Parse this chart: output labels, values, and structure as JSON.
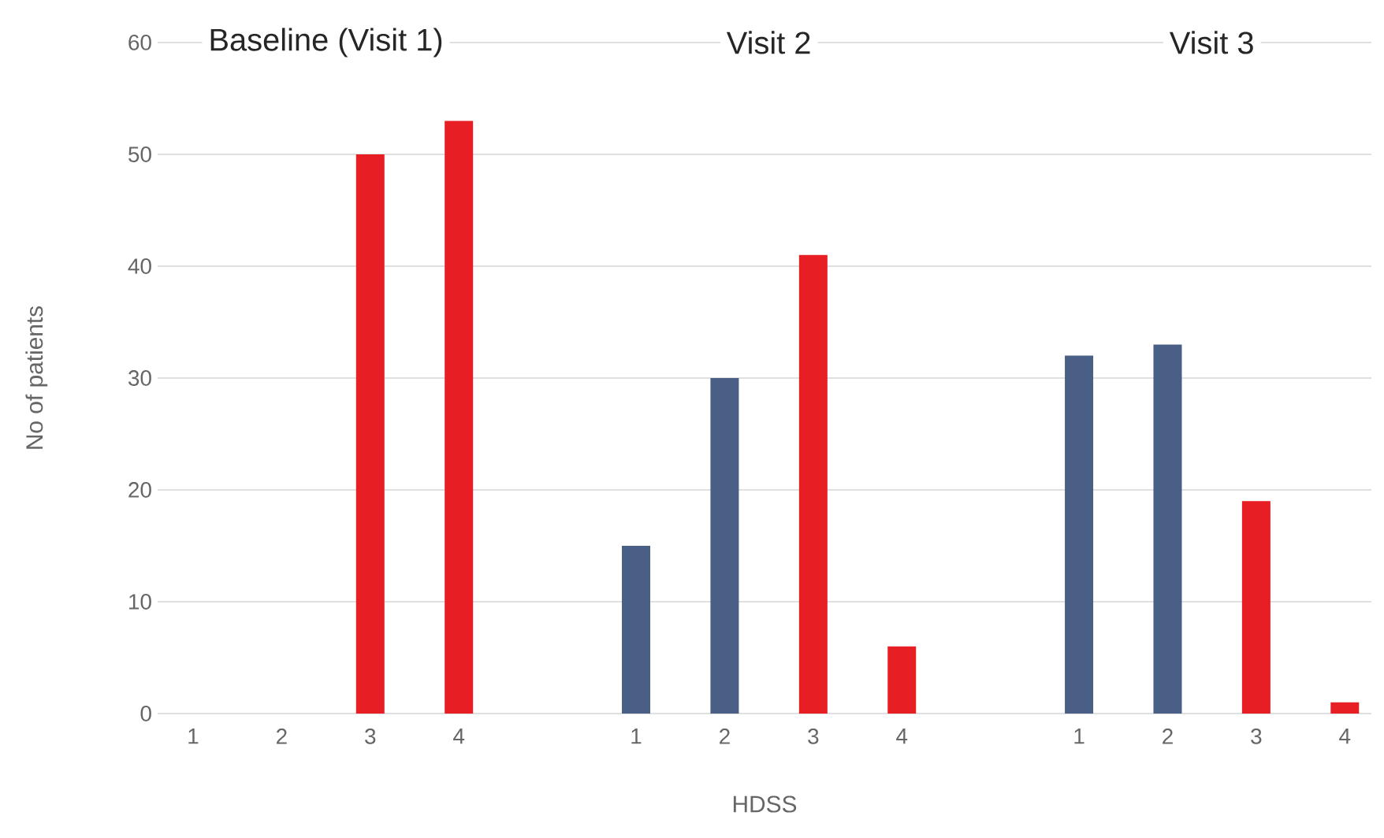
{
  "chart_data": {
    "type": "bar",
    "xlabel": "HDSS",
    "ylabel": "No of patients",
    "categories": [
      "1",
      "2",
      "3",
      "4",
      null,
      "1",
      "2",
      "3",
      "4",
      null,
      "1",
      "2",
      "3",
      "4"
    ],
    "values": [
      0,
      0,
      50,
      53,
      null,
      15,
      30,
      41,
      6,
      null,
      32,
      33,
      19,
      1
    ],
    "colors": [
      "#4a5f85",
      "#4a5f85",
      "#e81e25",
      "#e81e25",
      null,
      "#4a5f85",
      "#4a5f85",
      "#e81e25",
      "#e81e25",
      null,
      "#4a5f85",
      "#4a5f85",
      "#e81e25",
      "#e81e25"
    ],
    "ylim": [
      0,
      60
    ],
    "yticks": [
      0,
      10,
      20,
      30,
      40,
      50,
      60
    ],
    "grid": "y",
    "annotations": [
      "Baseline (Visit 1)",
      "Visit 2",
      "Visit 3"
    ]
  }
}
